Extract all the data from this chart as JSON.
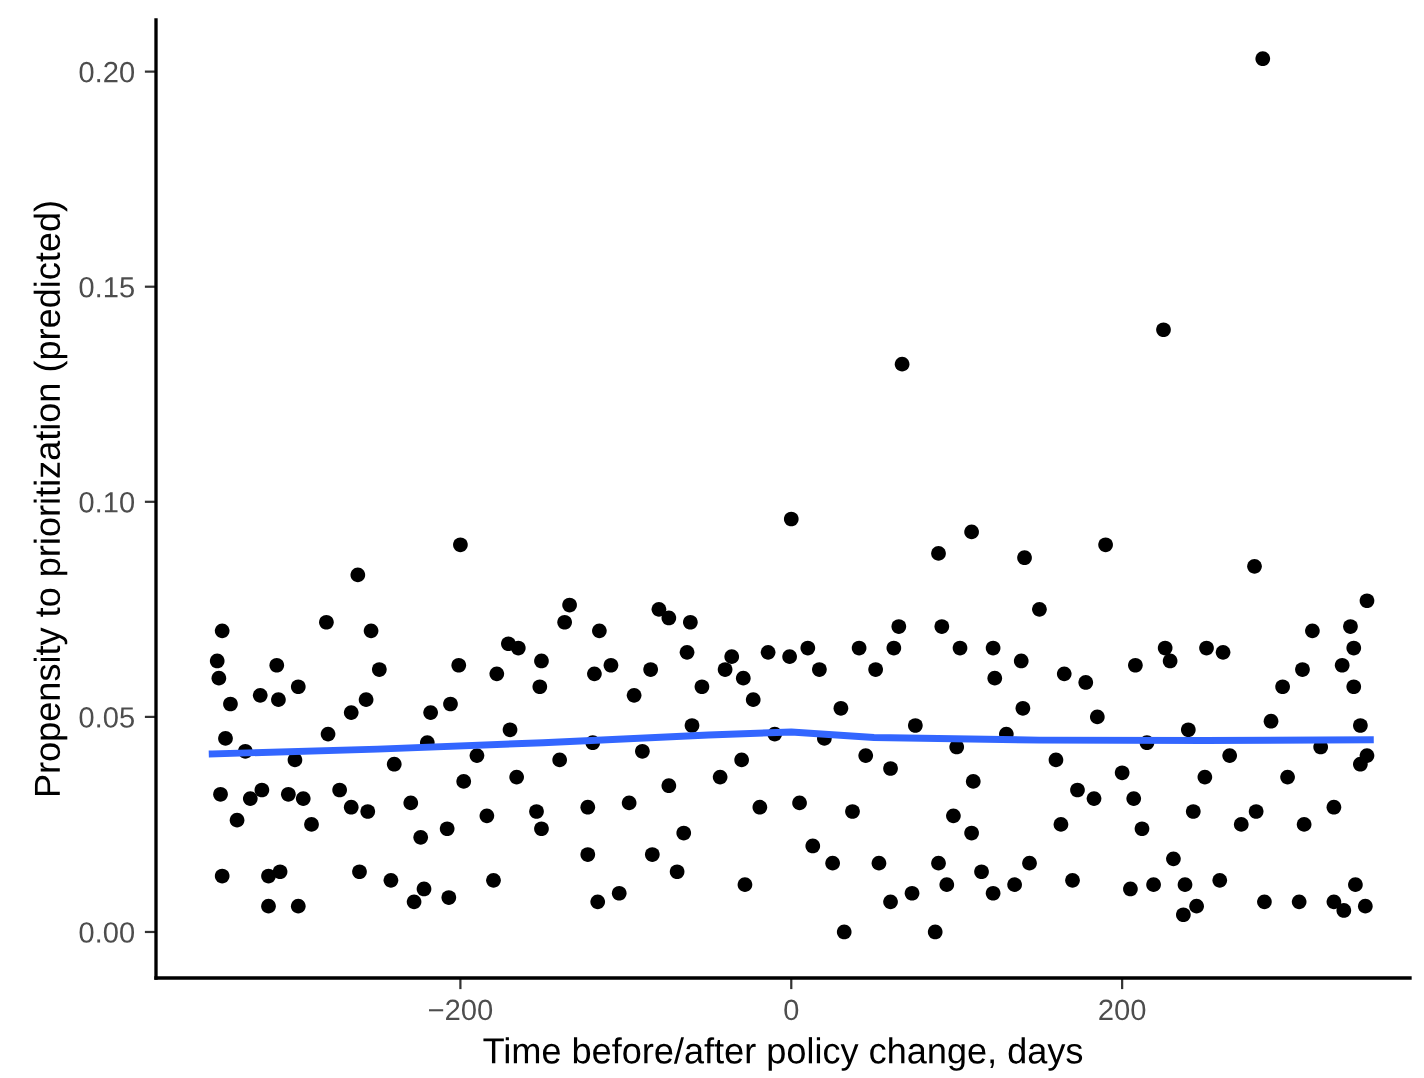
{
  "chart_data": {
    "type": "scatter",
    "xlabel": "Time before/after policy change, days",
    "ylabel": "Propensity to prioritization (predicted)",
    "xlim": [
      -384,
      374
    ],
    "ylim": [
      -0.0107,
      0.212
    ],
    "xticks": [
      {
        "value": -200,
        "label": "−200"
      },
      0,
      200
    ],
    "yticks": [
      {
        "value": 0,
        "label": "0.00"
      },
      {
        "value": 0.05,
        "label": "0.05"
      },
      {
        "value": 0.1,
        "label": "0.10"
      },
      {
        "value": 0.15,
        "label": "0.15"
      },
      {
        "value": 0.2,
        "label": "0.20"
      }
    ],
    "grid": false,
    "legend": false,
    "series": [
      {
        "color": "#000000",
        "marker": "circle",
        "x": [
          -344,
          -347,
          -346,
          -339,
          -342,
          -345,
          -335,
          -344,
          -316,
          -309,
          -316,
          -298,
          -321,
          -311,
          -310,
          -320,
          -327,
          -304,
          -295,
          -290,
          -298,
          -281,
          -262,
          -254,
          -249,
          -257,
          -266,
          -273,
          -266,
          -256,
          -261,
          -242,
          -228,
          -222,
          -207,
          -224,
          -208,
          -200,
          -201,
          -206,
          -218,
          -230,
          -198,
          -184,
          -180,
          -178,
          -171,
          -165,
          -151,
          -152,
          -154,
          -151,
          -166,
          -134,
          -137,
          -116,
          -109,
          -119,
          -123,
          -117,
          -104,
          -123,
          -98,
          -84,
          -80,
          -74,
          -61,
          -63,
          -85,
          -95,
          -54,
          -36,
          -29,
          -40,
          -23,
          -14,
          -65,
          -69,
          -28,
          -19,
          -74,
          -43,
          -330,
          -300,
          -280,
          -240,
          -220,
          -190,
          -170,
          -140,
          -120,
          -90,
          -60,
          -30,
          -10,
          0,
          10,
          -1,
          17,
          5,
          13,
          25,
          32,
          37,
          41,
          51,
          53,
          60,
          73,
          62,
          65,
          67,
          89,
          91,
          87,
          89,
          94,
          98,
          109,
          102,
          109,
          115,
          122,
          122,
          123,
          135,
          139,
          141,
          150,
          144,
          165,
          178,
          163,
          170,
          173,
          183,
          190,
          208,
          205,
          219,
          212,
          207,
          225,
          226,
          229,
          231,
          238,
          237,
          245,
          243,
          251,
          261,
          259,
          272,
          280,
          285,
          281,
          286,
          307,
          297,
          315,
          309,
          310,
          328,
          328,
          334,
          341,
          347,
          338,
          340,
          333,
          340,
          348,
          344,
          344,
          348,
          20,
          45,
          75,
          100,
          130,
          160,
          185,
          215,
          240,
          265,
          290,
          320,
          30,
          140,
          200,
          250,
          110,
          60,
          300
        ],
        "values": [
          0.07,
          0.063,
          0.059,
          0.053,
          0.045,
          0.032,
          0.026,
          0.013,
          0.013,
          0.014,
          0.006,
          0.006,
          0.055,
          0.062,
          0.054,
          0.033,
          0.031,
          0.032,
          0.031,
          0.025,
          0.057,
          0.072,
          0.083,
          0.07,
          0.061,
          0.054,
          0.051,
          0.033,
          0.029,
          0.028,
          0.014,
          0.012,
          0.007,
          0.01,
          0.008,
          0.022,
          0.024,
          0.09,
          0.062,
          0.053,
          0.051,
          0.03,
          0.035,
          0.027,
          0.012,
          0.06,
          0.067,
          0.066,
          0.063,
          0.057,
          0.028,
          0.024,
          0.036,
          0.076,
          0.072,
          0.07,
          0.062,
          0.06,
          0.018,
          0.007,
          0.009,
          0.029,
          0.03,
          0.018,
          0.075,
          0.073,
          0.072,
          0.065,
          0.061,
          0.055,
          0.057,
          0.064,
          0.059,
          0.061,
          0.054,
          0.065,
          0.023,
          0.014,
          0.011,
          0.029,
          0.034,
          0.036,
          0.042,
          0.04,
          0.046,
          0.039,
          0.044,
          0.041,
          0.047,
          0.04,
          0.044,
          0.042,
          0.048,
          0.04,
          0.046,
          0.096,
          0.066,
          0.064,
          0.061,
          0.03,
          0.02,
          0.016,
          0.0,
          0.028,
          0.066,
          0.061,
          0.016,
          0.007,
          0.009,
          0.066,
          0.071,
          0.132,
          0.088,
          0.071,
          0.0,
          0.016,
          0.011,
          0.027,
          0.093,
          0.066,
          0.023,
          0.014,
          0.009,
          0.066,
          0.059,
          0.011,
          0.063,
          0.087,
          0.075,
          0.016,
          0.06,
          0.058,
          0.025,
          0.012,
          0.033,
          0.031,
          0.09,
          0.062,
          0.01,
          0.011,
          0.024,
          0.031,
          0.14,
          0.066,
          0.063,
          0.017,
          0.011,
          0.004,
          0.006,
          0.028,
          0.066,
          0.065,
          0.012,
          0.025,
          0.085,
          0.203,
          0.028,
          0.007,
          0.007,
          0.057,
          0.07,
          0.061,
          0.025,
          0.029,
          0.007,
          0.005,
          0.011,
          0.006,
          0.071,
          0.066,
          0.062,
          0.057,
          0.077,
          0.048,
          0.039,
          0.041,
          0.045,
          0.041,
          0.048,
          0.043,
          0.046,
          0.04,
          0.05,
          0.044,
          0.047,
          0.041,
          0.049,
          0.043,
          0.052,
          0.052,
          0.037,
          0.036,
          0.035,
          0.038,
          0.036
        ]
      },
      {
        "type": "line",
        "color": "#3366ff",
        "marker": "none",
        "line_style": "solid",
        "x": [
          -350,
          -250,
          -150,
          -50,
          0,
          50,
          150,
          250,
          350
        ],
        "values": [
          0.0414,
          0.0425,
          0.044,
          0.0458,
          0.0465,
          0.0452,
          0.0446,
          0.0445,
          0.0447
        ]
      }
    ]
  }
}
